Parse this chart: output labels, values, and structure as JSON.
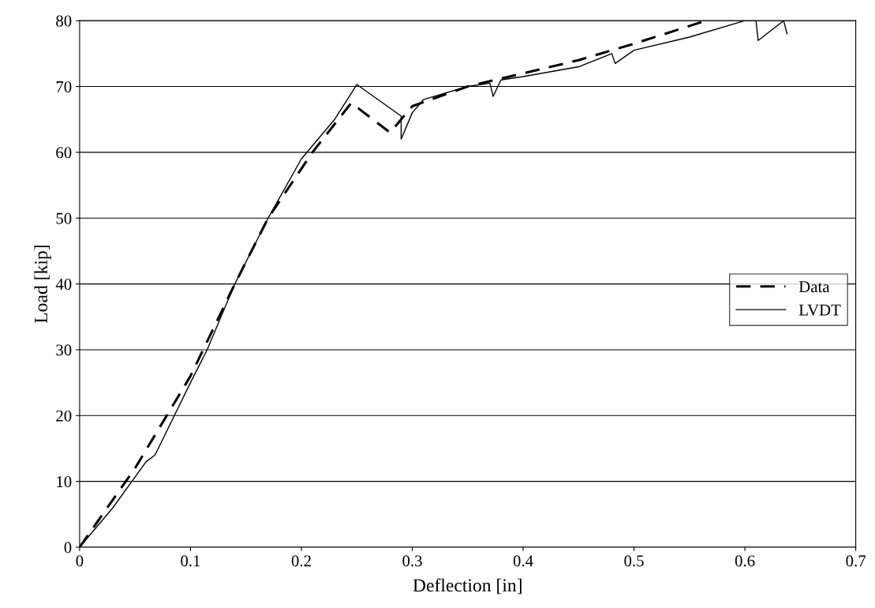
{
  "chart_data": {
    "type": "line",
    "xlabel": "Deflection [in]",
    "ylabel": "Load [kip]",
    "xlim": [
      0,
      0.7
    ],
    "xticks": [
      0,
      0.1,
      0.2,
      0.3,
      0.4,
      0.5,
      0.6,
      0.7
    ],
    "ylim": [
      0,
      80
    ],
    "yticks": [
      0,
      10,
      20,
      30,
      40,
      50,
      60,
      70,
      80
    ],
    "grid": "y",
    "legend": "right",
    "marker": "none",
    "series": [
      {
        "name": "Data",
        "color": "#000000",
        "line_style": "dashed",
        "x": [
          0,
          0.05,
          0.1,
          0.14,
          0.17,
          0.21,
          0.245,
          0.28,
          0.3,
          0.35,
          0.4,
          0.45,
          0.5,
          0.565
        ],
        "values": [
          0,
          12,
          26,
          40,
          50,
          60,
          67.5,
          63,
          67,
          70,
          72,
          74,
          76.5,
          80
        ]
      },
      {
        "name": "LVDT",
        "color": "#000000",
        "line_style": "solid",
        "x": [
          0,
          0.03,
          0.06,
          0.068,
          0.1,
          0.115,
          0.14,
          0.17,
          0.2,
          0.21,
          0.23,
          0.25,
          0.29,
          0.29,
          0.3,
          0.31,
          0.35,
          0.37,
          0.373,
          0.38,
          0.4,
          0.45,
          0.48,
          0.483,
          0.5,
          0.55,
          0.6,
          0.61,
          0.612,
          0.635,
          0.638
        ],
        "values": [
          0,
          6,
          13,
          14,
          25,
          30,
          40,
          50,
          59,
          61,
          65,
          70.3,
          65.5,
          62,
          66,
          68,
          70,
          70.5,
          68.5,
          71,
          71.5,
          73,
          75,
          73.5,
          75.5,
          77.5,
          80,
          80,
          77,
          80,
          78
        ]
      }
    ]
  }
}
